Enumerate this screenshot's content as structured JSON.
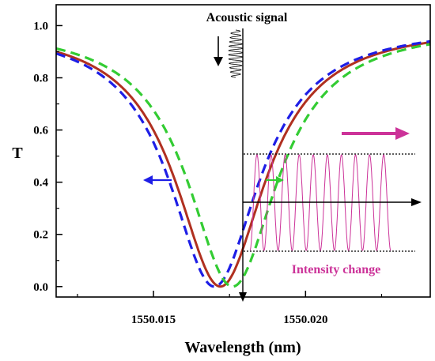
{
  "chart_data": {
    "type": "line",
    "xlabel": "Wavelength (nm)",
    "ylabel": "T",
    "xlim": [
      1550.0118,
      1550.0241
    ],
    "ylim": [
      -0.04,
      1.08
    ],
    "x_ticks": [
      1550.015,
      1550.02
    ],
    "x_tick_labels": [
      "1550.015",
      "1550.020"
    ],
    "y_ticks": [
      0.0,
      0.2,
      0.4,
      0.6,
      0.8,
      1.0
    ],
    "y_tick_labels": [
      "0.0",
      "0.2",
      "0.4",
      "0.6",
      "0.8",
      "1.0"
    ],
    "grid": false,
    "series": [
      {
        "style": "solid",
        "color": "#b03020",
        "center": 1550.0172,
        "min": 0.0
      },
      {
        "style": "dashed",
        "color": "#1e1ee6",
        "center": 1550.017,
        "min": 0.0
      },
      {
        "style": "dashed",
        "color": "#33cc33",
        "center": 1550.0176,
        "min": 0.0
      }
    ],
    "annotations": {
      "acoustic_signal": "Acoustic signal",
      "intensity_change": "Intensity change"
    },
    "colors": {
      "intensity": "#cc3399",
      "arrow_magenta": "#cc3399",
      "arrow_blue": "#1e1ee6",
      "arrow_green": "#33cc33"
    }
  }
}
